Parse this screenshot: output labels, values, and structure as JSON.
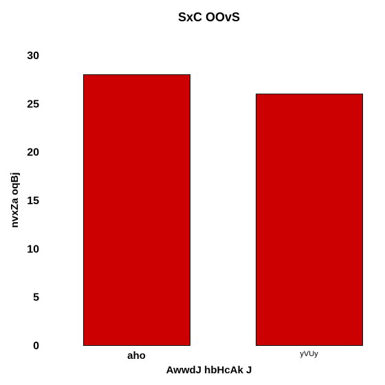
{
  "chart_data": {
    "type": "bar",
    "title": "SxC OOvS",
    "xlabel": "AwwdJ hbHcAk J",
    "ylabel": "nvxZa oqBj",
    "categories": [
      "aho",
      "yVUy"
    ],
    "values": [
      28,
      26
    ],
    "ylim": [
      0,
      30
    ],
    "yticks": [
      "0",
      "5",
      "10",
      "15",
      "20",
      "25",
      "30"
    ],
    "grid": false,
    "legend": "none",
    "bar_color": "#cc0000",
    "bar_edge_color": "#000000"
  }
}
